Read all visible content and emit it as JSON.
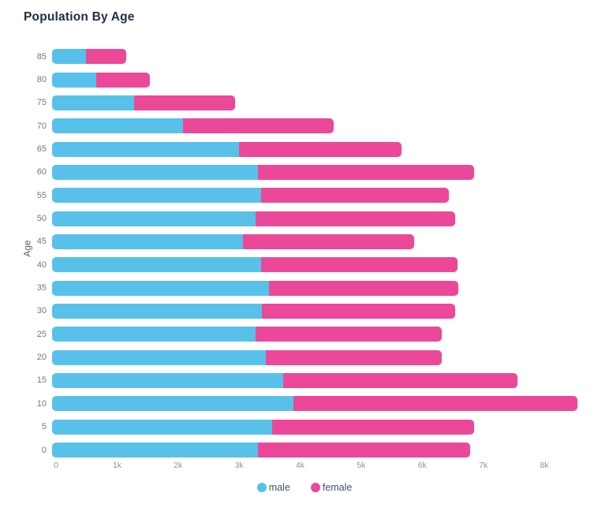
{
  "chart_data": {
    "type": "bar",
    "orientation": "horizontal",
    "stacked": true,
    "title": "Population By Age",
    "ylabel": "Age",
    "xlabel": "",
    "categories": [
      "85",
      "80",
      "75",
      "70",
      "65",
      "60",
      "55",
      "50",
      "45",
      "40",
      "35",
      "30",
      "25",
      "20",
      "15",
      "10",
      "5",
      "0"
    ],
    "series": [
      {
        "name": "male",
        "color": "#58c1e9",
        "values": [
          550,
          720,
          1350,
          2140,
          3060,
          3370,
          3430,
          3340,
          3130,
          3430,
          3550,
          3440,
          3340,
          3500,
          3790,
          3960,
          3600,
          3370
        ]
      },
      {
        "name": "female",
        "color": "#ec4899",
        "values": [
          670,
          880,
          1650,
          2470,
          2670,
          3550,
          3070,
          3270,
          2800,
          3210,
          3110,
          3160,
          3050,
          2890,
          3830,
          4650,
          3320,
          3480
        ]
      }
    ],
    "x_ticks": [
      {
        "value": 0,
        "label": "0"
      },
      {
        "value": 1000,
        "label": "1k"
      },
      {
        "value": 2000,
        "label": "2k"
      },
      {
        "value": 3000,
        "label": "3k"
      },
      {
        "value": 4000,
        "label": "4k"
      },
      {
        "value": 5000,
        "label": "5k"
      },
      {
        "value": 6000,
        "label": "6k"
      },
      {
        "value": 7000,
        "label": "7k"
      },
      {
        "value": 8000,
        "label": "8k"
      }
    ],
    "xlim": [
      0,
      9060
    ],
    "grid": false,
    "legend_position": "bottom",
    "background": "#ffffff"
  }
}
